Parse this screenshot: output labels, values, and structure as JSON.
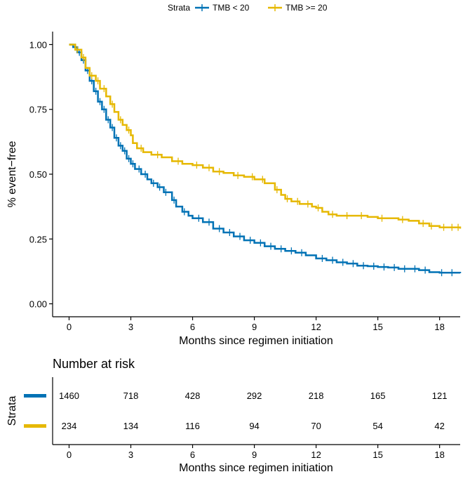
{
  "chart_data": {
    "type": "line",
    "subtype": "kaplan-meier",
    "title": "",
    "xlabel": "Months since regimen initiation",
    "ylabel": "% event−free",
    "xlim": [
      -0.8,
      19
    ],
    "ylim": [
      -0.05,
      1.05
    ],
    "x_ticks": [
      0,
      3,
      6,
      9,
      12,
      15,
      18
    ],
    "x_tick_labels": [
      "0",
      "3",
      "6",
      "9",
      "12",
      "15",
      "18"
    ],
    "y_ticks": [
      0,
      0.25,
      0.5,
      0.75,
      1
    ],
    "y_tick_labels": [
      "0.00",
      "0.25",
      "0.50",
      "0.75",
      "1.00"
    ],
    "legend": {
      "title": "Strata",
      "placement": "top",
      "entries": [
        "TMB < 20",
        "TMB >= 20"
      ]
    },
    "series": [
      {
        "name": "TMB < 20",
        "color": "#0072B5",
        "points": [
          [
            0,
            1
          ],
          [
            0.2,
            0.99
          ],
          [
            0.4,
            0.97
          ],
          [
            0.6,
            0.94
          ],
          [
            0.8,
            0.9
          ],
          [
            1,
            0.86
          ],
          [
            1.2,
            0.82
          ],
          [
            1.4,
            0.78
          ],
          [
            1.6,
            0.75
          ],
          [
            1.8,
            0.71
          ],
          [
            2,
            0.68
          ],
          [
            2.2,
            0.64
          ],
          [
            2.4,
            0.61
          ],
          [
            2.6,
            0.59
          ],
          [
            2.8,
            0.56
          ],
          [
            3,
            0.54
          ],
          [
            3.2,
            0.52
          ],
          [
            3.5,
            0.5
          ],
          [
            3.8,
            0.48
          ],
          [
            4,
            0.465
          ],
          [
            4.3,
            0.45
          ],
          [
            4.6,
            0.43
          ],
          [
            5,
            0.4
          ],
          [
            5.2,
            0.375
          ],
          [
            5.5,
            0.355
          ],
          [
            5.8,
            0.34
          ],
          [
            6,
            0.33
          ],
          [
            6.5,
            0.315
          ],
          [
            7,
            0.29
          ],
          [
            7.5,
            0.275
          ],
          [
            8,
            0.26
          ],
          [
            8.5,
            0.245
          ],
          [
            9,
            0.235
          ],
          [
            9.5,
            0.222
          ],
          [
            10,
            0.212
          ],
          [
            10.5,
            0.204
          ],
          [
            11,
            0.197
          ],
          [
            11.5,
            0.187
          ],
          [
            12,
            0.175
          ],
          [
            12.5,
            0.168
          ],
          [
            13,
            0.16
          ],
          [
            13.5,
            0.155
          ],
          [
            14,
            0.147
          ],
          [
            14.5,
            0.145
          ],
          [
            15,
            0.142
          ],
          [
            15.5,
            0.14
          ],
          [
            16,
            0.135
          ],
          [
            16.5,
            0.135
          ],
          [
            17,
            0.13
          ],
          [
            17.5,
            0.122
          ],
          [
            18,
            0.12
          ],
          [
            19,
            0.118
          ]
        ],
        "censor_x": [
          0.3,
          0.5,
          0.7,
          0.9,
          1.1,
          1.3,
          1.5,
          1.7,
          1.9,
          2.1,
          2.3,
          2.5,
          2.7,
          2.9,
          3.1,
          3.4,
          3.7,
          4.1,
          4.4,
          4.7,
          5.1,
          5.6,
          6.3,
          6.8,
          7.3,
          7.8,
          8.3,
          8.8,
          9.3,
          9.8,
          10.3,
          10.8,
          11.3,
          12.3,
          12.8,
          13.3,
          13.8,
          14.3,
          14.8,
          15.3,
          15.8,
          16.3,
          16.8,
          17.3,
          18.1,
          18.6
        ]
      },
      {
        "name": "TMB >= 20",
        "color": "#E6B800",
        "points": [
          [
            0,
            1
          ],
          [
            0.3,
            0.98
          ],
          [
            0.6,
            0.95
          ],
          [
            0.8,
            0.91
          ],
          [
            1,
            0.88
          ],
          [
            1.3,
            0.86
          ],
          [
            1.5,
            0.83
          ],
          [
            1.8,
            0.8
          ],
          [
            2,
            0.77
          ],
          [
            2.2,
            0.74
          ],
          [
            2.4,
            0.71
          ],
          [
            2.6,
            0.69
          ],
          [
            2.8,
            0.67
          ],
          [
            3,
            0.65
          ],
          [
            3.1,
            0.62
          ],
          [
            3.3,
            0.6
          ],
          [
            3.6,
            0.585
          ],
          [
            4,
            0.575
          ],
          [
            4.5,
            0.565
          ],
          [
            5,
            0.55
          ],
          [
            5.5,
            0.54
          ],
          [
            6,
            0.535
          ],
          [
            6.5,
            0.525
          ],
          [
            7,
            0.51
          ],
          [
            7.5,
            0.505
          ],
          [
            8,
            0.495
          ],
          [
            8.5,
            0.49
          ],
          [
            9,
            0.48
          ],
          [
            9.5,
            0.465
          ],
          [
            10,
            0.44
          ],
          [
            10.3,
            0.42
          ],
          [
            10.5,
            0.405
          ],
          [
            10.8,
            0.395
          ],
          [
            11.2,
            0.385
          ],
          [
            11.8,
            0.375
          ],
          [
            12,
            0.37
          ],
          [
            12.3,
            0.355
          ],
          [
            12.6,
            0.345
          ],
          [
            13,
            0.34
          ],
          [
            14,
            0.34
          ],
          [
            14.5,
            0.335
          ],
          [
            15,
            0.33
          ],
          [
            15.5,
            0.33
          ],
          [
            16,
            0.325
          ],
          [
            16.5,
            0.32
          ],
          [
            17,
            0.31
          ],
          [
            17.5,
            0.3
          ],
          [
            18,
            0.295
          ],
          [
            19,
            0.29
          ]
        ],
        "censor_x": [
          0.4,
          0.7,
          1.1,
          1.4,
          1.7,
          2.1,
          2.5,
          2.9,
          3.5,
          4.3,
          5.3,
          6.2,
          6.8,
          7.3,
          8.2,
          8.9,
          9.4,
          10.1,
          10.6,
          11.1,
          11.6,
          12.1,
          12.8,
          13.5,
          14.2,
          15.2,
          16.2,
          17.2,
          17.6,
          18.2,
          18.6,
          18.9
        ]
      }
    ],
    "risk_table": {
      "title": "Number at risk",
      "axis_title": "Strata",
      "xlabel": "Months since regimen initiation",
      "time_points": [
        0,
        3,
        6,
        9,
        12,
        15,
        18
      ],
      "rows": [
        {
          "name": "TMB < 20",
          "color": "#0072B5",
          "values": [
            "1460",
            "718",
            "428",
            "292",
            "218",
            "165",
            "121"
          ]
        },
        {
          "name": "TMB >= 20",
          "color": "#E6B800",
          "values": [
            "234",
            "134",
            "116",
            "94",
            "70",
            "54",
            "42"
          ]
        }
      ]
    }
  }
}
